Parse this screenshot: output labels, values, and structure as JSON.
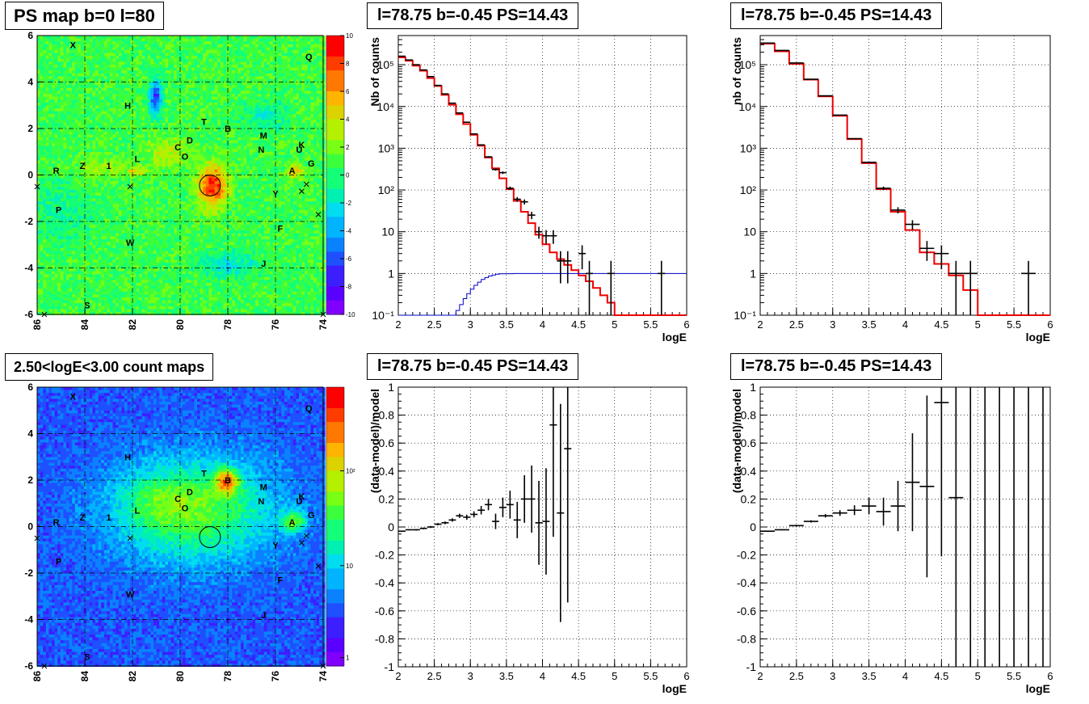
{
  "titles": {
    "map_top": "PS map b=0 l=80",
    "map_bottom": "2.50<logE<3.00 count maps",
    "p1": "l=78.75 b=-0.45 PS=14.43",
    "p2": "l=78.75 b=-0.45 PS=14.43",
    "p3": "l=78.75 b=-0.45 PS=14.43",
    "p4": "l=78.75 b=-0.45 PS=14.43"
  },
  "colors": {
    "model_line": "#ee0000",
    "background_line": "#0000cc",
    "data": "#000000"
  },
  "map_axes": {
    "x_ticks": [
      "86",
      "84",
      "82",
      "80",
      "78",
      "76",
      "74"
    ],
    "y_ticks": [
      "-6",
      "-4",
      "-2",
      "0",
      "2",
      "4",
      "6"
    ]
  },
  "source_labels": [
    {
      "t": "X",
      "l": 84.5,
      "b": 5.6
    },
    {
      "t": "Q",
      "l": 74.6,
      "b": 5.1
    },
    {
      "t": "H",
      "l": 82.2,
      "b": 3.0
    },
    {
      "t": "T",
      "l": 79.0,
      "b": 2.3
    },
    {
      "t": "B",
      "l": 78.0,
      "b": 2.0
    },
    {
      "t": "M",
      "l": 76.5,
      "b": 1.7
    },
    {
      "t": "D",
      "l": 79.6,
      "b": 1.5
    },
    {
      "t": "N",
      "l": 76.6,
      "b": 1.1
    },
    {
      "t": "K",
      "l": 74.9,
      "b": 1.3
    },
    {
      "t": "U",
      "l": 75.0,
      "b": 1.1
    },
    {
      "t": "C",
      "l": 80.1,
      "b": 1.2
    },
    {
      "t": "O",
      "l": 79.8,
      "b": 0.8
    },
    {
      "t": "G",
      "l": 74.5,
      "b": 0.5
    },
    {
      "t": "Z",
      "l": 84.1,
      "b": 0.4
    },
    {
      "t": "1",
      "l": 83.0,
      "b": 0.4
    },
    {
      "t": "L",
      "l": 81.8,
      "b": 0.7
    },
    {
      "t": "R",
      "l": 85.2,
      "b": 0.2
    },
    {
      "t": "A",
      "l": 75.3,
      "b": 0.2
    },
    {
      "t": "Y",
      "l": 76.0,
      "b": -0.8
    },
    {
      "t": "P",
      "l": 85.1,
      "b": -1.5
    },
    {
      "t": "F",
      "l": 75.8,
      "b": -2.3
    },
    {
      "t": "W",
      "l": 82.1,
      "b": -2.9
    },
    {
      "t": "J",
      "l": 76.5,
      "b": -3.8
    },
    {
      "t": "S",
      "l": 83.9,
      "b": -5.6
    }
  ],
  "cross_markers": [
    {
      "l": 85.7,
      "b": -6.0
    },
    {
      "l": 74.0,
      "b": -6.0
    },
    {
      "l": 86.0,
      "b": -0.5
    },
    {
      "l": 82.1,
      "b": -0.5
    },
    {
      "l": 74.9,
      "b": -0.7
    },
    {
      "l": 74.7,
      "b": -0.4
    },
    {
      "l": 74.2,
      "b": -1.7
    }
  ],
  "circle": {
    "l": 78.75,
    "b": -0.45
  },
  "chart_data": [
    {
      "id": "ps_map",
      "type": "heatmap",
      "title": "PS map b=0 l=80",
      "x_range": [
        86,
        74
      ],
      "y_range": [
        -6,
        6
      ],
      "colorbar": {
        "min": -10,
        "max": 10,
        "ticks": [
          "10",
          "8",
          "6",
          "4",
          "2",
          "0",
          "-2",
          "-4",
          "-6",
          "-8",
          "-10"
        ]
      }
    },
    {
      "id": "count_map",
      "type": "heatmap",
      "title": "2.50<logE<3.00 count maps",
      "x_range": [
        86,
        74
      ],
      "y_range": [
        -6,
        6
      ],
      "colorbar": {
        "scale": "log",
        "ticks": [
          "10²",
          "10",
          "1"
        ]
      }
    },
    {
      "id": "spectrum_left",
      "type": "line",
      "title": "l=78.75 b=-0.45 PS=14.43",
      "xlabel": "logE",
      "ylabel": "Nb of counts",
      "xlim": [
        2,
        6
      ],
      "ylim": [
        0.1,
        500000
      ],
      "yscale": "log",
      "x_ticks": [
        "2",
        "2.5",
        "3",
        "3.5",
        "4",
        "4.5",
        "5",
        "5.5",
        "6"
      ],
      "y_ticks": [
        "10⁻¹",
        "1",
        "10",
        "10²",
        "10³",
        "10⁴",
        "10⁵"
      ],
      "data": {
        "x": [
          2.05,
          2.15,
          2.25,
          2.35,
          2.45,
          2.55,
          2.65,
          2.75,
          2.85,
          2.95,
          3.05,
          3.15,
          3.25,
          3.35,
          3.45,
          3.55,
          3.65,
          3.75,
          3.85,
          3.95,
          4.05,
          4.15,
          4.25,
          4.35,
          4.55,
          4.65,
          4.95,
          5.65
        ],
        "y": [
          160000,
          130000,
          100000,
          75000,
          52000,
          32000,
          20000,
          12000,
          7000,
          4200,
          2200,
          1200,
          620,
          310,
          260,
          110,
          60,
          52,
          25,
          10,
          8,
          8,
          2,
          2,
          3,
          1,
          1,
          1
        ],
        "xerr": 0.05,
        "yerr_rel": [
          0.003,
          0.003,
          0.003,
          0.004,
          0.005,
          0.006,
          0.007,
          0.01,
          0.012,
          0.015,
          0.02,
          0.03,
          0.04,
          0.06,
          0.07,
          0.1,
          0.13,
          0.14,
          0.2,
          0.32,
          0.36,
          0.36,
          0.71,
          0.71,
          0.58,
          1,
          1,
          1
        ]
      },
      "series": [
        {
          "name": "",
          "color": "red",
          "edges": [
            2.0,
            2.1,
            2.2,
            2.3,
            2.4,
            2.5,
            2.6,
            2.7,
            2.8,
            2.9,
            3.0,
            3.1,
            3.2,
            3.3,
            3.4,
            3.5,
            3.6,
            3.7,
            3.8,
            3.9,
            4.0,
            4.1,
            4.2,
            4.3,
            4.4,
            4.5,
            4.6,
            4.7,
            4.8,
            4.9,
            5.0,
            6.0
          ],
          "values": [
            150000,
            125000,
            95000,
            72000,
            48000,
            31000,
            19000,
            11000,
            6500,
            3800,
            2100,
            1150,
            600,
            330,
            190,
            105,
            55,
            30,
            16,
            8.5,
            5,
            3.2,
            2.2,
            1.6,
            1.2,
            0.9,
            0.65,
            0.45,
            0.3,
            0.2,
            0.1
          ]
        },
        {
          "name": "",
          "color": "blue",
          "edges": [
            2.0,
            2.8,
            2.85,
            2.9,
            2.95,
            3.0,
            3.05,
            3.1,
            3.15,
            3.2,
            3.25,
            3.3,
            3.35,
            3.4,
            3.5,
            3.6,
            6.0
          ],
          "values": [
            0.1,
            0.13,
            0.18,
            0.25,
            0.33,
            0.42,
            0.52,
            0.62,
            0.72,
            0.8,
            0.87,
            0.92,
            0.96,
            0.98,
            0.99,
            1.0
          ]
        }
      ]
    },
    {
      "id": "spectrum_right",
      "type": "line",
      "title": "l=78.75 b=-0.45 PS=14.43",
      "xlabel": "logE",
      "ylabel": "nb of counts",
      "xlim": [
        2,
        6
      ],
      "ylim": [
        0.1,
        500000
      ],
      "yscale": "log",
      "x_ticks": [
        "2",
        "2.5",
        "3",
        "3.5",
        "4",
        "4.5",
        "5",
        "5.5",
        "6"
      ],
      "y_ticks": [
        "10⁻¹",
        "1",
        "10",
        "10²",
        "10³",
        "10⁴",
        "10⁵"
      ],
      "data": {
        "x": [
          2.1,
          2.3,
          2.5,
          2.7,
          2.9,
          3.1,
          3.3,
          3.5,
          3.7,
          3.9,
          4.1,
          4.3,
          4.5,
          4.7,
          4.9,
          5.7
        ],
        "y": [
          330000,
          220000,
          110000,
          45000,
          18000,
          6200,
          1700,
          460,
          110,
          33,
          15,
          4,
          3,
          1,
          1,
          1
        ],
        "xerr": 0.1,
        "yerr_rel": [
          0.002,
          0.002,
          0.003,
          0.005,
          0.008,
          0.013,
          0.025,
          0.05,
          0.1,
          0.17,
          0.26,
          0.5,
          0.58,
          1,
          1,
          1
        ]
      },
      "series": [
        {
          "name": "",
          "color": "red",
          "edges": [
            2.0,
            2.2,
            2.4,
            2.6,
            2.8,
            3.0,
            3.2,
            3.4,
            3.6,
            3.8,
            4.0,
            4.2,
            4.4,
            4.6,
            4.8,
            5.0,
            6.0
          ],
          "values": [
            320000,
            210000,
            105000,
            44000,
            17500,
            6000,
            1650,
            440,
            105,
            30,
            11,
            3.2,
            1.7,
            0.9,
            0.4,
            0.1
          ]
        }
      ]
    },
    {
      "id": "residual_left",
      "type": "scatter",
      "title": "l=78.75 b=-0.45 PS=14.43",
      "xlabel": "logE",
      "ylabel": "(data-model)/model",
      "xlim": [
        2,
        6
      ],
      "ylim": [
        -1,
        1
      ],
      "x_ticks": [
        "2",
        "2.5",
        "3",
        "3.5",
        "4",
        "4.5",
        "5",
        "5.5",
        "6"
      ],
      "y_ticks": [
        "-1",
        "-0.8",
        "-0.6",
        "-0.4",
        "-0.2",
        "0",
        "0.2",
        "0.4",
        "0.6",
        "0.8",
        "1"
      ],
      "x": [
        2.05,
        2.15,
        2.25,
        2.35,
        2.45,
        2.55,
        2.65,
        2.75,
        2.85,
        2.95,
        3.05,
        3.15,
        3.25,
        3.35,
        3.45,
        3.55,
        3.65,
        3.75,
        3.85,
        3.95,
        4.05,
        4.15,
        4.25,
        4.35
      ],
      "y": [
        -0.03,
        -0.02,
        -0.02,
        -0.01,
        0.0,
        0.02,
        0.03,
        0.05,
        0.08,
        0.07,
        0.09,
        0.12,
        0.16,
        0.04,
        0.14,
        0.16,
        0.05,
        0.2,
        0.2,
        0.03,
        0.04,
        0.73,
        0.1,
        0.56
      ],
      "xerr": 0.05,
      "yerr": [
        0.004,
        0.004,
        0.005,
        0.006,
        0.007,
        0.008,
        0.01,
        0.012,
        0.015,
        0.018,
        0.022,
        0.03,
        0.04,
        0.055,
        0.07,
        0.1,
        0.13,
        0.17,
        0.24,
        0.3,
        0.38,
        0.8,
        0.78,
        1.1
      ]
    },
    {
      "id": "residual_right",
      "type": "scatter",
      "title": "l=78.75 b=-0.45 PS=14.43",
      "xlabel": "logE",
      "ylabel": "(data-model)/model",
      "xlim": [
        2,
        6
      ],
      "ylim": [
        -1,
        1
      ],
      "x_ticks": [
        "2",
        "2.5",
        "3",
        "3.5",
        "4",
        "4.5",
        "5",
        "5.5",
        "6"
      ],
      "y_ticks": [
        "-1",
        "-0.8",
        "-0.6",
        "-0.4",
        "-0.2",
        "0",
        "0.2",
        "0.4",
        "0.6",
        "0.8",
        "1"
      ],
      "x": [
        2.1,
        2.3,
        2.5,
        2.7,
        2.9,
        3.1,
        3.3,
        3.5,
        3.7,
        3.9,
        4.1,
        4.3,
        4.5,
        4.7,
        4.9,
        5.1,
        5.3,
        5.5,
        5.7,
        5.9
      ],
      "y": [
        -0.03,
        -0.02,
        0.01,
        0.04,
        0.08,
        0.1,
        0.12,
        0.15,
        0.11,
        0.15,
        0.32,
        0.29,
        0.89,
        0.21,
        null,
        null,
        null,
        null,
        null,
        null
      ],
      "xerr": 0.1,
      "yerr": [
        0.003,
        0.004,
        0.006,
        0.008,
        0.012,
        0.02,
        0.035,
        0.06,
        0.1,
        0.18,
        0.35,
        0.65,
        1.1,
        1.5,
        2,
        2,
        2,
        2,
        2,
        2
      ]
    }
  ]
}
